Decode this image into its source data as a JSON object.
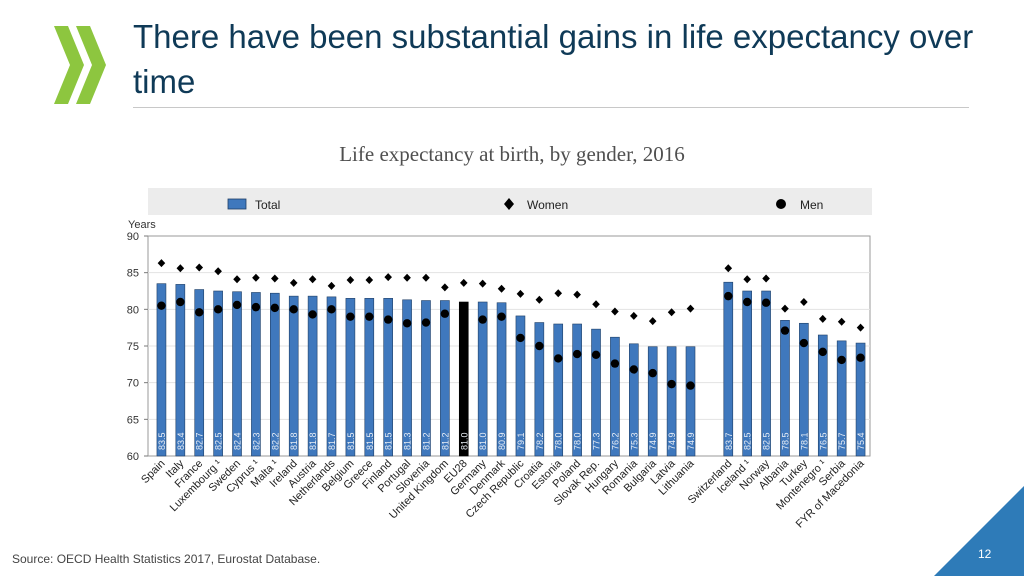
{
  "slide": {
    "title": "There have been substantial gains in life expectancy over time",
    "source": "Source: OECD Health Statistics 2017, Eurostat Database.",
    "page_number": "12"
  },
  "colors": {
    "bar": "#3f78bd",
    "highlight": "#000000",
    "title": "#0f3a57",
    "logo": "#8dc63f",
    "accent": "#2e7bb8"
  },
  "chart_data": {
    "type": "bar",
    "title": "Life expectancy at birth, by gender, 2016",
    "ylabel": "Years",
    "ylim": [
      60,
      90
    ],
    "yticks": [
      60,
      65,
      70,
      75,
      80,
      85,
      90
    ],
    "highlight": "EU28",
    "gap_before": "Switzerland",
    "legend": {
      "position": "top",
      "items": [
        "Total",
        "Women",
        "Men"
      ]
    },
    "categories": [
      "Spain",
      "Italy",
      "France",
      "Luxembourg ¹",
      "Sweden",
      "Cyprus ¹",
      "Malta ¹",
      "Ireland",
      "Austria",
      "Netherlands",
      "Belgium",
      "Greece",
      "Finland",
      "Portugal",
      "Slovenia",
      "United Kingdom",
      "EU28",
      "Germany",
      "Denmark",
      "Czech Republic",
      "Croatia",
      "Estonia",
      "Poland",
      "Slovak Rep.",
      "Hungary",
      "Romania",
      "Bulgaria",
      "Latvia",
      "Lithuania",
      "Switzerland",
      "Iceland ¹",
      "Norway",
      "Albania",
      "Turkey",
      "Montenegro ¹",
      "Serbia",
      "FYR of Macedonia"
    ],
    "series": [
      {
        "name": "Total",
        "marker": "bar",
        "values": [
          83.5,
          83.4,
          82.7,
          82.5,
          82.4,
          82.3,
          82.2,
          81.8,
          81.8,
          81.7,
          81.5,
          81.5,
          81.5,
          81.3,
          81.2,
          81.2,
          81.0,
          81.0,
          80.9,
          79.1,
          78.2,
          78.0,
          78.0,
          77.3,
          76.2,
          75.3,
          74.9,
          74.9,
          74.9,
          83.7,
          82.5,
          82.5,
          78.5,
          78.1,
          76.5,
          75.7,
          75.4
        ]
      },
      {
        "name": "Women",
        "marker": "diamond",
        "values": [
          86.3,
          85.6,
          85.7,
          85.2,
          84.1,
          84.3,
          84.2,
          83.6,
          84.1,
          83.2,
          84.0,
          84.0,
          84.4,
          84.3,
          84.3,
          83.0,
          83.6,
          83.5,
          82.8,
          82.1,
          81.3,
          82.2,
          82.0,
          80.7,
          79.7,
          79.1,
          78.4,
          79.6,
          80.1,
          85.6,
          84.1,
          84.2,
          80.1,
          81.0,
          78.7,
          78.3,
          77.5
        ]
      },
      {
        "name": "Men",
        "marker": "circle",
        "values": [
          80.5,
          81.0,
          79.6,
          80.0,
          80.6,
          80.3,
          80.2,
          80.0,
          79.3,
          80.0,
          79.0,
          79.0,
          78.6,
          78.1,
          78.2,
          79.4,
          78.2,
          78.6,
          79.0,
          76.1,
          75.0,
          73.3,
          73.9,
          73.8,
          72.6,
          71.8,
          71.3,
          69.8,
          69.6,
          81.8,
          81.0,
          80.9,
          77.1,
          75.4,
          74.2,
          73.1,
          73.4
        ]
      }
    ],
    "value_labels": [
      "83.5",
      "83.4",
      "82.7",
      "82.5",
      "82.4",
      "82.3",
      "82.2",
      "81.8",
      "81.8",
      "81.7",
      "81.5",
      "81.5",
      "81.5",
      "81.3",
      "81.2",
      "81.2",
      "81.0",
      "81.0",
      "80.9",
      "79.1",
      "78.2",
      "78.0",
      "78.0",
      "77.3",
      "76.2",
      "75.3",
      "74.9",
      "74.9",
      "74.9",
      "83.7",
      "82.5",
      "82.5",
      "78.5",
      "78.1",
      "76.5",
      "75.7",
      "75.4"
    ]
  }
}
